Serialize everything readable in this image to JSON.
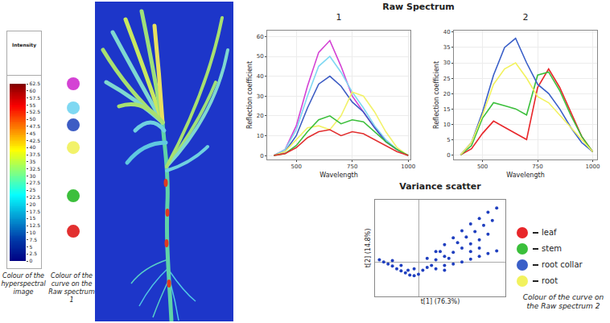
{
  "heading": "Raw Spectrum",
  "chart_data": [
    {
      "type": "colorbar",
      "title": "Intensity",
      "colorbar": {
        "range": [
          0,
          62.5
        ],
        "ticks": [
          0,
          2.5,
          5,
          7.5,
          10,
          12.5,
          15,
          17.5,
          20,
          22.5,
          25,
          27.5,
          30,
          32.5,
          35,
          37.5,
          40,
          42.5,
          45,
          47.5,
          50,
          52.5,
          55,
          57.5,
          60,
          62.5
        ]
      },
      "markers": {
        "levels": [
          62.5,
          54,
          48,
          40,
          23,
          10.5
        ],
        "colors": [
          "#d442d4",
          "#7fd8f2",
          "#3d5cc4",
          "#f2f26a",
          "#3cbf3c",
          "#e23030"
        ]
      },
      "captions": [
        "Colour of the hyperspectral image",
        "Colour of the curve on the Raw spectrum 1"
      ]
    },
    {
      "type": "line",
      "title": "1",
      "x_label": "Wavelength",
      "y_label": "Reflection coefficient",
      "x": [
        400,
        450,
        500,
        550,
        600,
        650,
        700,
        750,
        800,
        850,
        900,
        950,
        1000
      ],
      "series": [
        {
          "color": "#d442d4",
          "values": [
            0,
            3,
            15,
            35,
            52,
            58,
            45,
            30,
            22,
            14,
            7,
            3,
            0
          ]
        },
        {
          "color": "#7fd8f2",
          "values": [
            0,
            3,
            13,
            30,
            45,
            50,
            42,
            32,
            24,
            15,
            8,
            3,
            0
          ]
        },
        {
          "color": "#3d5cc4",
          "values": [
            0,
            2,
            10,
            24,
            36,
            40,
            35,
            27,
            22,
            14,
            7,
            3,
            0
          ]
        },
        {
          "color": "#f2f26a",
          "values": [
            0,
            2,
            8,
            14,
            15,
            13,
            20,
            32,
            30,
            22,
            12,
            4,
            0
          ]
        },
        {
          "color": "#3cbf3c",
          "values": [
            0,
            1,
            5,
            12,
            18,
            20,
            16,
            18,
            17,
            12,
            7,
            3,
            0
          ]
        },
        {
          "color": "#e23030",
          "values": [
            0,
            1,
            4,
            9,
            12,
            13,
            10,
            12,
            11,
            8,
            5,
            2,
            0
          ]
        }
      ],
      "xlim": [
        370,
        1010
      ],
      "ylim": [
        -2,
        63
      ],
      "xticks": [
        500,
        750,
        1000
      ],
      "yticks": [
        0,
        10,
        20,
        30,
        40,
        50,
        60
      ],
      "grid": true
    },
    {
      "type": "line",
      "title": "2",
      "x_label": "Wavelength",
      "y_label": "Reflection coefficient",
      "x": [
        400,
        450,
        500,
        550,
        600,
        650,
        700,
        750,
        800,
        850,
        900,
        950,
        1000
      ],
      "series": [
        {
          "name": "leaf",
          "color": "#e8262a",
          "values": [
            0,
            2,
            7,
            11,
            9,
            7,
            5,
            22,
            28,
            22,
            14,
            6,
            1
          ]
        },
        {
          "name": "stem",
          "color": "#3bbf3b",
          "values": [
            0,
            3,
            12,
            17,
            16,
            15,
            13,
            26,
            27,
            21,
            13,
            6,
            1
          ]
        },
        {
          "name": "root collar",
          "color": "#3a5fc8",
          "values": [
            0,
            4,
            14,
            26,
            35,
            38,
            30,
            23,
            20,
            15,
            9,
            4,
            1
          ]
        },
        {
          "name": "root",
          "color": "#f2f25e",
          "values": [
            0,
            4,
            13,
            23,
            28,
            30,
            25,
            19,
            17,
            13,
            9,
            5,
            1
          ]
        }
      ],
      "xlim": [
        370,
        1020
      ],
      "ylim": [
        -1.5,
        40.5
      ],
      "xticks": [
        500,
        750,
        1000
      ],
      "yticks": [
        0,
        5,
        10,
        15,
        20,
        25,
        30,
        35,
        40
      ],
      "grid": true,
      "legend": "right",
      "legend_caption": "Colour of the curve on the Raw spectrum 2"
    },
    {
      "type": "scatter",
      "title": "Variance scatter",
      "x_label": "t[1] (76.3%)",
      "y_label": "t[2] (14.8%)",
      "x": [
        -4.5,
        -4,
        -3.5,
        -3,
        -2.5,
        -2,
        -1.5,
        -1,
        -0.5,
        0,
        -1.2,
        -2,
        -3,
        -0.5,
        0.5,
        1,
        1,
        2,
        3,
        4,
        5,
        6,
        7,
        8,
        9,
        2,
        3,
        4,
        5,
        6,
        7,
        8,
        3,
        4,
        5,
        6,
        7,
        8,
        9,
        2.5,
        4.5,
        5.5,
        6.5,
        7.5,
        8.5,
        3.5,
        6,
        7,
        1.5,
        2,
        3
      ],
      "values": [
        0.3,
        0,
        -0.3,
        -0.6,
        -1,
        -1.3,
        -1.6,
        -1.9,
        -2,
        -1.8,
        -1.2,
        -0.5,
        0.2,
        -1,
        -1.2,
        -0.8,
        0.5,
        1.5,
        2.5,
        3.5,
        4.5,
        5.5,
        6.3,
        7.2,
        7.8,
        0.3,
        0.8,
        1.4,
        2,
        2.6,
        3.2,
        4,
        -0.5,
        -0.3,
        0,
        0.4,
        0.8,
        1.2,
        1.6,
        1.5,
        2.8,
        3.6,
        4.4,
        5.3,
        6,
        0.5,
        1.5,
        2,
        -0.5,
        -1,
        -1.2
      ],
      "color": "#1f3fbf",
      "xlim": [
        -5,
        10
      ],
      "ylim": [
        -5,
        9
      ],
      "tick_labels": false,
      "grid": false
    }
  ]
}
